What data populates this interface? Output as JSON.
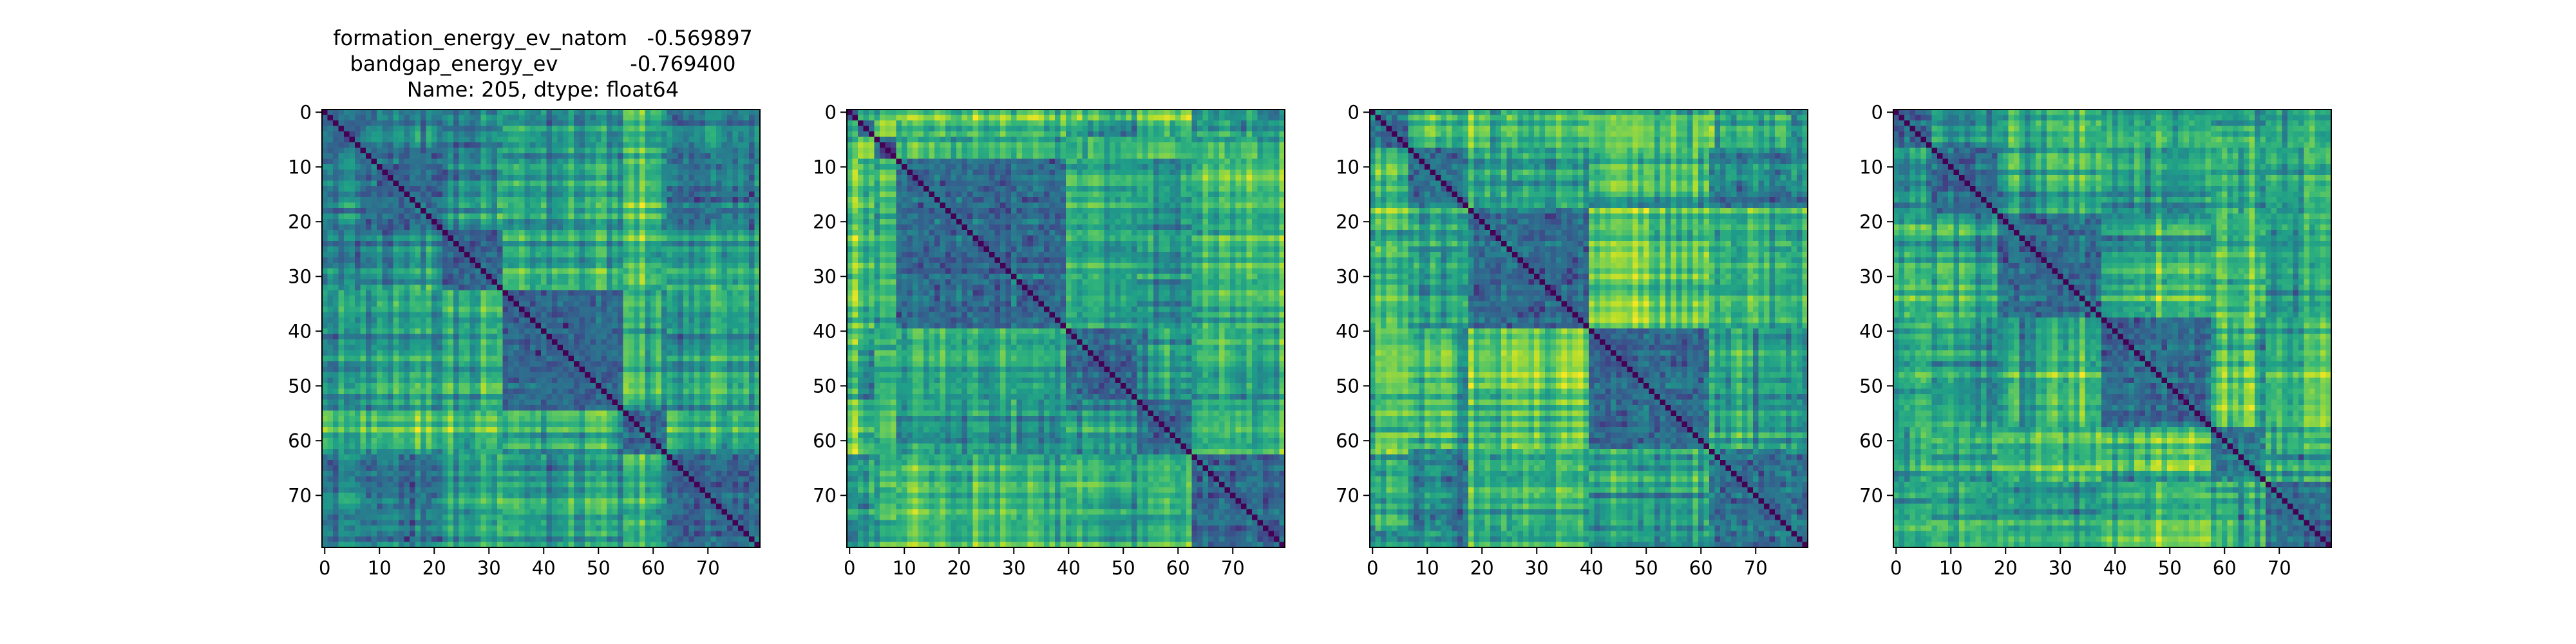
{
  "figure": {
    "title_lines": [
      "formation_energy_ev_natom   -0.569897",
      "bandgap_energy_ev           -0.769400",
      "Name: 205, dtype: float64"
    ]
  },
  "chart_data": [
    {
      "type": "heatmap",
      "title": "formation_energy_ev_natom   -0.569897 / bandgap_energy_ev           -0.769400 / Name: 205, dtype: float64",
      "n": 80,
      "xlim": [
        -0.5,
        79.5
      ],
      "ylim": [
        79.5,
        -0.5
      ],
      "x_ticks": [
        0,
        10,
        20,
        30,
        40,
        50,
        60,
        70
      ],
      "y_ticks": [
        0,
        10,
        20,
        30,
        40,
        50,
        60,
        70
      ],
      "colormap": "viridis",
      "diagonal": "min (dark purple)",
      "block_boundaries": [
        7,
        22,
        33,
        55,
        63
      ],
      "seed": 205
    },
    {
      "type": "heatmap",
      "title": "",
      "n": 80,
      "xlim": [
        -0.5,
        79.5
      ],
      "ylim": [
        79.5,
        -0.5
      ],
      "x_ticks": [
        0,
        10,
        20,
        30,
        40,
        50,
        60,
        70
      ],
      "y_ticks": [
        0,
        10,
        20,
        30,
        40,
        50,
        60,
        70
      ],
      "colormap": "viridis",
      "diagonal": "min (dark purple)",
      "block_boundaries": [
        2,
        5,
        9,
        40,
        53,
        63
      ],
      "seed": 911
    },
    {
      "type": "heatmap",
      "title": "",
      "n": 80,
      "xlim": [
        -0.5,
        79.5
      ],
      "ylim": [
        79.5,
        -0.5
      ],
      "x_ticks": [
        0,
        10,
        20,
        30,
        40,
        50,
        60,
        70
      ],
      "y_ticks": [
        0,
        10,
        20,
        30,
        40,
        50,
        60,
        70
      ],
      "colormap": "viridis",
      "diagonal": "min (dark purple)",
      "block_boundaries": [
        7,
        18,
        40,
        62
      ],
      "seed": 4242
    },
    {
      "type": "heatmap",
      "title": "",
      "n": 80,
      "xlim": [
        -0.5,
        79.5
      ],
      "ylim": [
        79.5,
        -0.5
      ],
      "x_ticks": [
        0,
        10,
        20,
        30,
        40,
        50,
        60,
        70
      ],
      "y_ticks": [
        0,
        10,
        20,
        30,
        40,
        50,
        60,
        70
      ],
      "colormap": "viridis",
      "diagonal": "min (dark purple)",
      "block_boundaries": [
        7,
        19,
        38,
        58,
        68
      ],
      "seed": 1337
    }
  ],
  "colors": {
    "axis": "#000000",
    "background": "#ffffff"
  }
}
